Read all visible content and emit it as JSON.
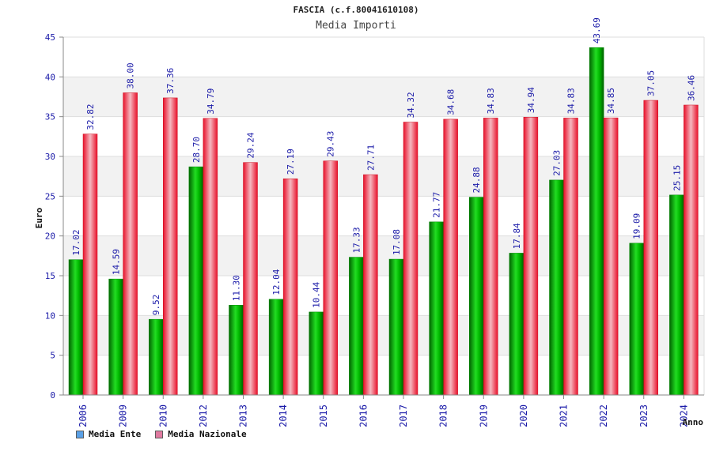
{
  "chart_data": {
    "type": "bar",
    "title": "FASCIA (c.f.80041610108)",
    "subtitle": "Media Importi",
    "xlabel": "Anno",
    "ylabel": "Euro",
    "ylim": [
      0,
      45
    ],
    "yticks": [
      "0",
      "5",
      "10",
      "15",
      "20",
      "25",
      "30",
      "35",
      "40",
      "45"
    ],
    "grid": true,
    "legend_position": "bottom-left",
    "categories": [
      "2006",
      "2009",
      "2010",
      "2012",
      "2013",
      "2014",
      "2015",
      "2016",
      "2017",
      "2018",
      "2019",
      "2020",
      "2021",
      "2022",
      "2023",
      "2024"
    ],
    "series": [
      {
        "name": "Media Ente",
        "color": "#00c000",
        "legend_color": "#5aa0e6",
        "values": [
          17.02,
          14.59,
          9.52,
          28.7,
          11.3,
          12.04,
          10.44,
          17.33,
          17.08,
          21.77,
          24.88,
          17.84,
          27.03,
          43.69,
          19.09,
          25.15
        ],
        "labels": [
          "17.02",
          "14.59",
          "9.52",
          "28.70",
          "11.30",
          "12.04",
          "10.44",
          "17.33",
          "17.08",
          "21.77",
          "24.88",
          "17.84",
          "27.03",
          "43.69",
          "19.09",
          "25.15"
        ]
      },
      {
        "name": "Media Nazionale",
        "color": "#ee2030",
        "legend_color": "#e07aa0",
        "values": [
          32.82,
          38.0,
          37.36,
          34.79,
          29.24,
          27.19,
          29.43,
          27.71,
          34.32,
          34.68,
          34.83,
          34.94,
          34.83,
          34.85,
          37.05,
          36.46
        ],
        "labels": [
          "32.82",
          "38.00",
          "37.36",
          "34.79",
          "29.24",
          "27.19",
          "29.43",
          "27.71",
          "34.32",
          "34.68",
          "34.83",
          "34.94",
          "34.83",
          "34.85",
          "37.05",
          "36.46"
        ]
      }
    ]
  }
}
